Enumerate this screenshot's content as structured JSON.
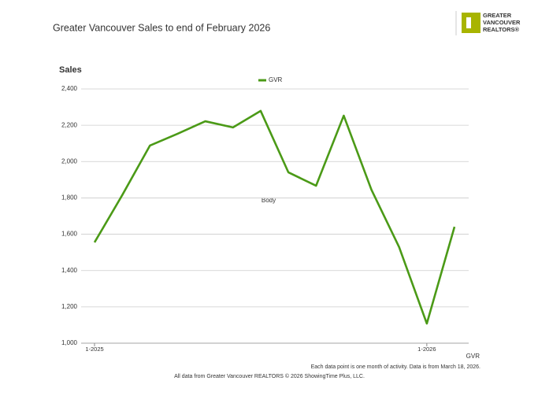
{
  "header": {
    "title": "Greater Vancouver Sales to end of February 2026",
    "logo": [
      "GREATER",
      "VANCOUVER",
      "REALTORS®"
    ]
  },
  "chart_data": {
    "type": "line",
    "y_title": "Sales",
    "annotation": "Body",
    "x_label": "GVR",
    "categories": [
      "1-2025",
      null,
      null,
      null,
      null,
      null,
      null,
      null,
      null,
      null,
      null,
      null,
      "1-2026",
      null
    ],
    "series": [
      {
        "name": "GVR",
        "color": "#4b9a17",
        "values": [
          1555,
          1815,
          2088,
          2153,
          2222,
          2188,
          2279,
          1941,
          1867,
          2253,
          1845,
          1529,
          1108,
          1641
        ]
      }
    ],
    "ylim": [
      1000,
      2400
    ],
    "yticks": [
      {
        "value": 1000,
        "label": "1,000"
      },
      {
        "value": 1200,
        "label": "1,200"
      },
      {
        "value": 1400,
        "label": "1,400"
      },
      {
        "value": 1600,
        "label": "1,600"
      },
      {
        "value": 1800,
        "label": "1,800"
      },
      {
        "value": 2000,
        "label": "2,000"
      },
      {
        "value": 2200,
        "label": "2,200"
      },
      {
        "value": 2400,
        "label": "2,400"
      }
    ],
    "grid": true,
    "legend": "top"
  },
  "footer": {
    "note": "Each data point is one month of activity. Data is from March 18, 2026.",
    "source": "All data from Greater Vancouver REALTORS © 2026 ShowingTime Plus, LLC."
  }
}
